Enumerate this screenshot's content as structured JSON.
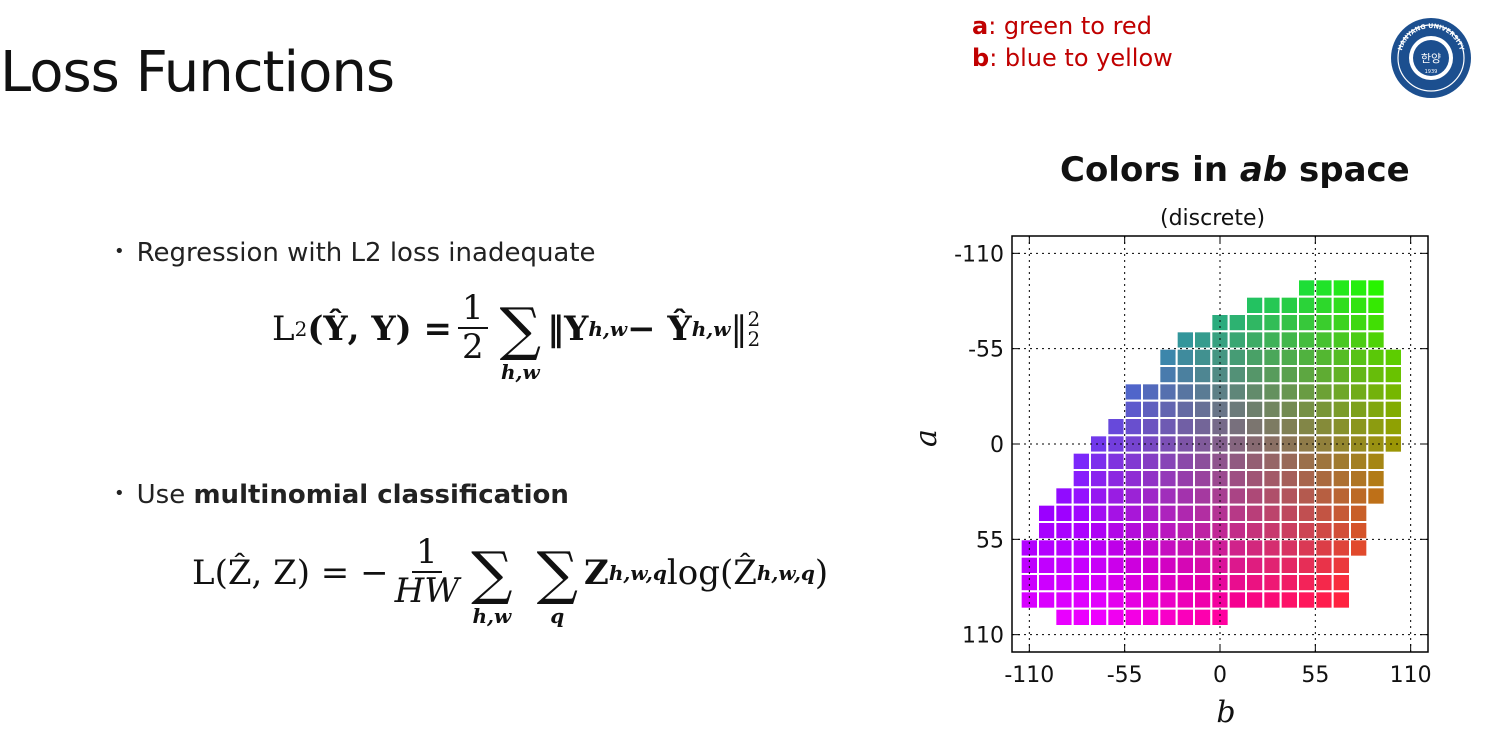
{
  "slide": {
    "title": "Loss Functions",
    "note": {
      "a_key": "a",
      "a_text": ": green to red",
      "b_key": "b",
      "b_text": ": blue to yellow"
    },
    "logo": {
      "icon": "university-seal-icon",
      "top_text": "HANYANG UNIVERSITY",
      "center_text": "한양",
      "year": "1939"
    },
    "bullets": [
      {
        "text": "Regression with L2 loss  inadequate"
      },
      {
        "prefix": "Use ",
        "strong": "multinomial classification"
      }
    ]
  },
  "equations": {
    "l2": {
      "lhs": "L",
      "lhs_sub": "2",
      "args": "(Ŷ, Y) = ",
      "frac_num": "1",
      "frac_den": "2",
      "sum_sub": "h,w",
      "body": "‖Y",
      "body_sub": "h,w",
      "minus": " − Ŷ",
      "body2_sub": "h,w",
      "norm_close": "‖",
      "norm_sup": "2",
      "norm_sub": "2"
    },
    "ce": {
      "lhs": "L(Ẑ, Z) = −",
      "frac_num": "1",
      "frac_den": "HW",
      "sum1_sub": "h,w",
      "sum2_sub": "q",
      "body": "Z",
      "body_sub": "h,w,q",
      "log": " log(Ẑ",
      "log_sub": "h,w,q",
      "close": ")"
    }
  },
  "chart_data": {
    "type": "heatmap",
    "title_prefix": "Colors in ",
    "title_em": "ab",
    "title_suffix": " space",
    "subtitle": "(discrete)",
    "xlabel": "b",
    "ylabel": "a",
    "xlim": [
      -120,
      120
    ],
    "ylim": [
      -120,
      120
    ],
    "y_inverted": true,
    "xticks": [
      -110,
      -55,
      0,
      55,
      110
    ],
    "yticks": [
      -110,
      -55,
      0,
      55,
      110
    ],
    "grid": true,
    "bin_size": 10,
    "rows": [
      {
        "a": -90,
        "b_range": [
          50,
          90
        ]
      },
      {
        "a": -80,
        "b_range": [
          20,
          90
        ]
      },
      {
        "a": -70,
        "b_range": [
          0,
          90
        ]
      },
      {
        "a": -60,
        "b_range": [
          -20,
          90
        ]
      },
      {
        "a": -50,
        "b_range": [
          -30,
          100
        ]
      },
      {
        "a": -40,
        "b_range": [
          -30,
          100
        ]
      },
      {
        "a": -30,
        "b_range": [
          -50,
          100
        ]
      },
      {
        "a": -20,
        "b_range": [
          -50,
          100
        ]
      },
      {
        "a": -10,
        "b_range": [
          -60,
          100
        ]
      },
      {
        "a": 0,
        "b_range": [
          -70,
          100
        ]
      },
      {
        "a": 10,
        "b_range": [
          -80,
          90
        ]
      },
      {
        "a": 20,
        "b_range": [
          -80,
          90
        ]
      },
      {
        "a": 30,
        "b_range": [
          -90,
          90
        ]
      },
      {
        "a": 40,
        "b_range": [
          -100,
          80
        ]
      },
      {
        "a": 50,
        "b_range": [
          -100,
          80
        ]
      },
      {
        "a": 60,
        "b_range": [
          -110,
          80
        ]
      },
      {
        "a": 70,
        "b_range": [
          -110,
          70
        ]
      },
      {
        "a": 80,
        "b_range": [
          -110,
          70
        ]
      },
      {
        "a": 90,
        "b_range": [
          -110,
          70
        ]
      },
      {
        "a": 100,
        "b_range": [
          -90,
          0
        ]
      }
    ],
    "colors": {
      "axis": "#000000",
      "grid": "#000000",
      "cell_border": "#ffffff"
    }
  }
}
